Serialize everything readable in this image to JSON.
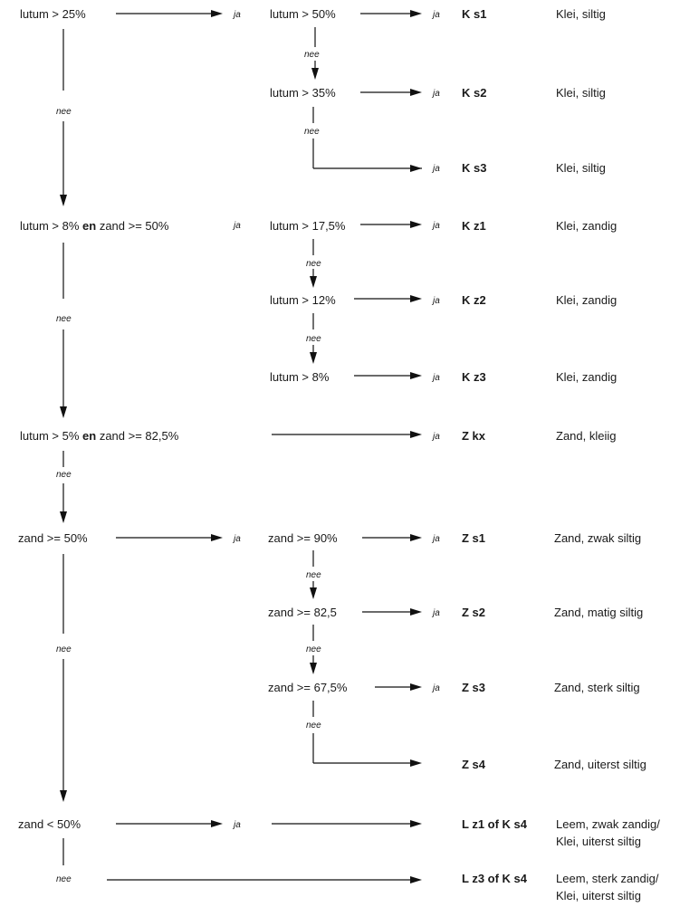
{
  "labels": {
    "ja": "ja",
    "nee": "nee"
  },
  "conditions": {
    "lutum_25": "lutum > 25%",
    "lutum_50": "lutum > 50%",
    "lutum_35": "lutum > 35%",
    "lutum_8_pre": "lutum > 8%",
    "lutum_8_en": "en",
    "lutum_8_post": "zand >= 50%",
    "lutum_17_5": "lutum > 17,5%",
    "lutum_12": "lutum > 12%",
    "lutum_8": "lutum > 8%",
    "lutum_5_pre": "lutum > 5%",
    "lutum_5_en": "en",
    "lutum_5_post": "zand >= 82,5%",
    "zand_50": "zand >= 50%",
    "zand_90": "zand >= 90%",
    "zand_82_5": "zand >= 82,5",
    "zand_67_5": "zand >= 67,5%",
    "zand_lt_50": "zand < 50%"
  },
  "classes": [
    {
      "code": "K s1",
      "desc": "Klei, siltig"
    },
    {
      "code": "K s2",
      "desc": "Klei, siltig"
    },
    {
      "code": "K s3",
      "desc": "Klei, siltig"
    },
    {
      "code": "K z1",
      "desc": "Klei, zandig"
    },
    {
      "code": "K z2",
      "desc": "Klei, zandig"
    },
    {
      "code": "K z3",
      "desc": "Klei, zandig"
    },
    {
      "code": "Z kx",
      "desc": "Zand, kleiig"
    },
    {
      "code": "Z s1",
      "desc": "Zand, zwak siltig"
    },
    {
      "code": "Z s2",
      "desc": "Zand, matig siltig"
    },
    {
      "code": "Z s3",
      "desc": "Zand, sterk siltig"
    },
    {
      "code": "Z s4",
      "desc": "Zand, uiterst siltig"
    },
    {
      "code": "L z1 of K s4",
      "desc": "Leem, zwak zandig/",
      "desc2": "Klei, uiterst siltig"
    },
    {
      "code": "L z3 of K s4",
      "desc": "Leem, sterk zandig/",
      "desc2": "Klei, uiterst siltig"
    }
  ]
}
